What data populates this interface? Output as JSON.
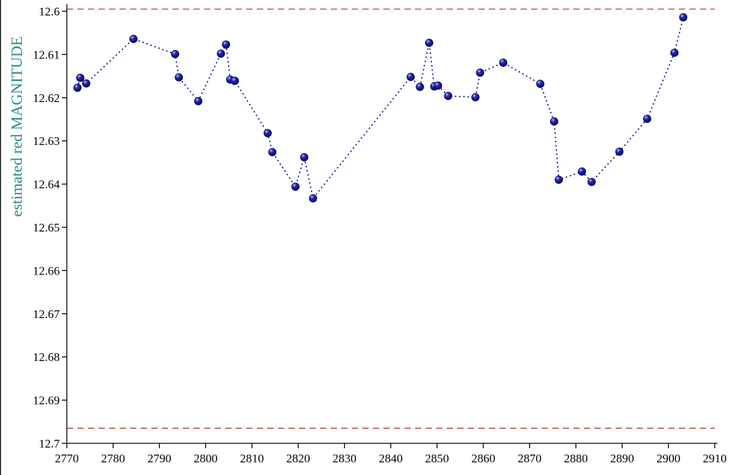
{
  "chart_data": {
    "type": "scatter",
    "title": "",
    "xlabel": "",
    "ylabel": "estimated red MAGNITUDE",
    "xlim": [
      2770,
      2910
    ],
    "ylim": [
      12.6,
      12.7
    ],
    "y_inverted": true,
    "grid": false,
    "x_ticks": [
      "2770",
      "2780",
      "2790",
      "2800",
      "2810",
      "2820",
      "2830",
      "2840",
      "2850",
      "2860",
      "2870",
      "2880",
      "2890",
      "2900",
      "2910"
    ],
    "y_ticks": [
      "12.6",
      "12.61",
      "12.62",
      "12.63",
      "12.64",
      "12.65",
      "12.66",
      "12.67",
      "12.68",
      "12.69",
      "12.7"
    ],
    "reference_lines": [
      {
        "y": 12.5995,
        "style": "dashed",
        "color": "#a52a2a"
      },
      {
        "y": 12.6965,
        "style": "dashed",
        "color": "#a52a2a"
      }
    ],
    "series": [
      {
        "connect": "dotted",
        "marker_color": "#000080",
        "line_color": "#000080",
        "x": [
          2772.3,
          2772.9,
          2774.2,
          2784.4,
          2793.4,
          2794.2,
          2798.4,
          2803.3,
          2804.4,
          2805.3,
          2806.3,
          2813.4,
          2814.4,
          2819.4,
          2821.3,
          2823.2,
          2844.3,
          2846.3,
          2848.3,
          2849.4,
          2850.2,
          2852.4,
          2858.3,
          2859.3,
          2864.3,
          2872.3,
          2875.3,
          2876.3,
          2881.3,
          2883.4,
          2889.4,
          2895.4,
          2901.3,
          2903.2
        ],
        "y": [
          12.6177,
          12.6154,
          12.6167,
          12.6064,
          12.6099,
          12.6153,
          12.6208,
          12.6098,
          12.6077,
          12.6158,
          12.6161,
          12.6282,
          12.6326,
          12.6406,
          12.6338,
          12.6433,
          12.6152,
          12.6175,
          12.6073,
          12.6174,
          12.6172,
          12.6196,
          12.6199,
          12.6142,
          12.6119,
          12.6168,
          12.6255,
          12.639,
          12.6371,
          12.6395,
          12.6325,
          12.6249,
          12.6096,
          12.6014
        ]
      }
    ]
  }
}
